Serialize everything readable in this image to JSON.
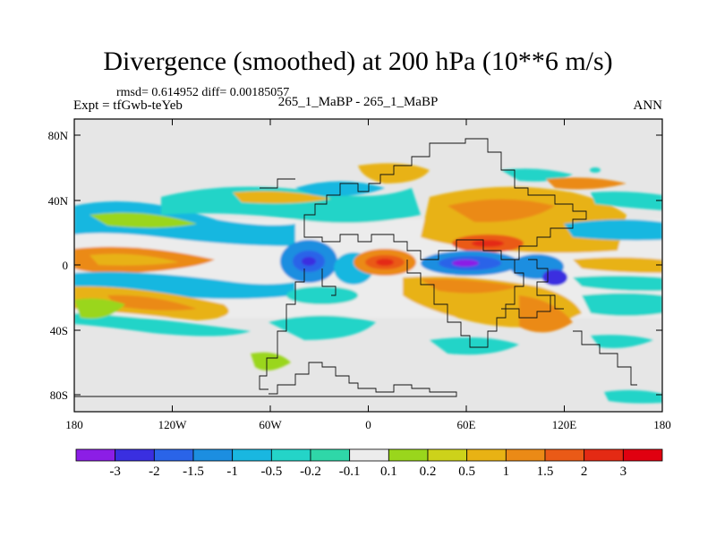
{
  "title": "Divergence (smoothed) at 200 hPa (10**6 m/s)",
  "stats_line": "rmsd= 0.614952 diff= 0.00185057",
  "expt_line": "Expt = tfGwb-teYeb",
  "case_line": "265_1_MaBP - 265_1_MaBP",
  "season": "ANN",
  "lat_ticks": [
    "80N",
    "40N",
    "0",
    "40S",
    "80S"
  ],
  "lon_ticks": [
    "180",
    "120W",
    "60W",
    "0",
    "60E",
    "120E",
    "180"
  ],
  "colorbar": {
    "labels": [
      "-3",
      "-2",
      "-1.5",
      "-1",
      "-0.5",
      "-0.2",
      "-0.1",
      "0.1",
      "0.2",
      "0.5",
      "1",
      "1.5",
      "2",
      "3"
    ],
    "colors": [
      "#8c1ee6",
      "#3a2fe0",
      "#2a64e8",
      "#1c8ee0",
      "#19b7e0",
      "#24d4c8",
      "#2fd7a8",
      "#ececec",
      "#9ad61c",
      "#cdd21a",
      "#e8b214",
      "#eb8a16",
      "#ea5a17",
      "#e42a14",
      "#e00010"
    ]
  }
}
